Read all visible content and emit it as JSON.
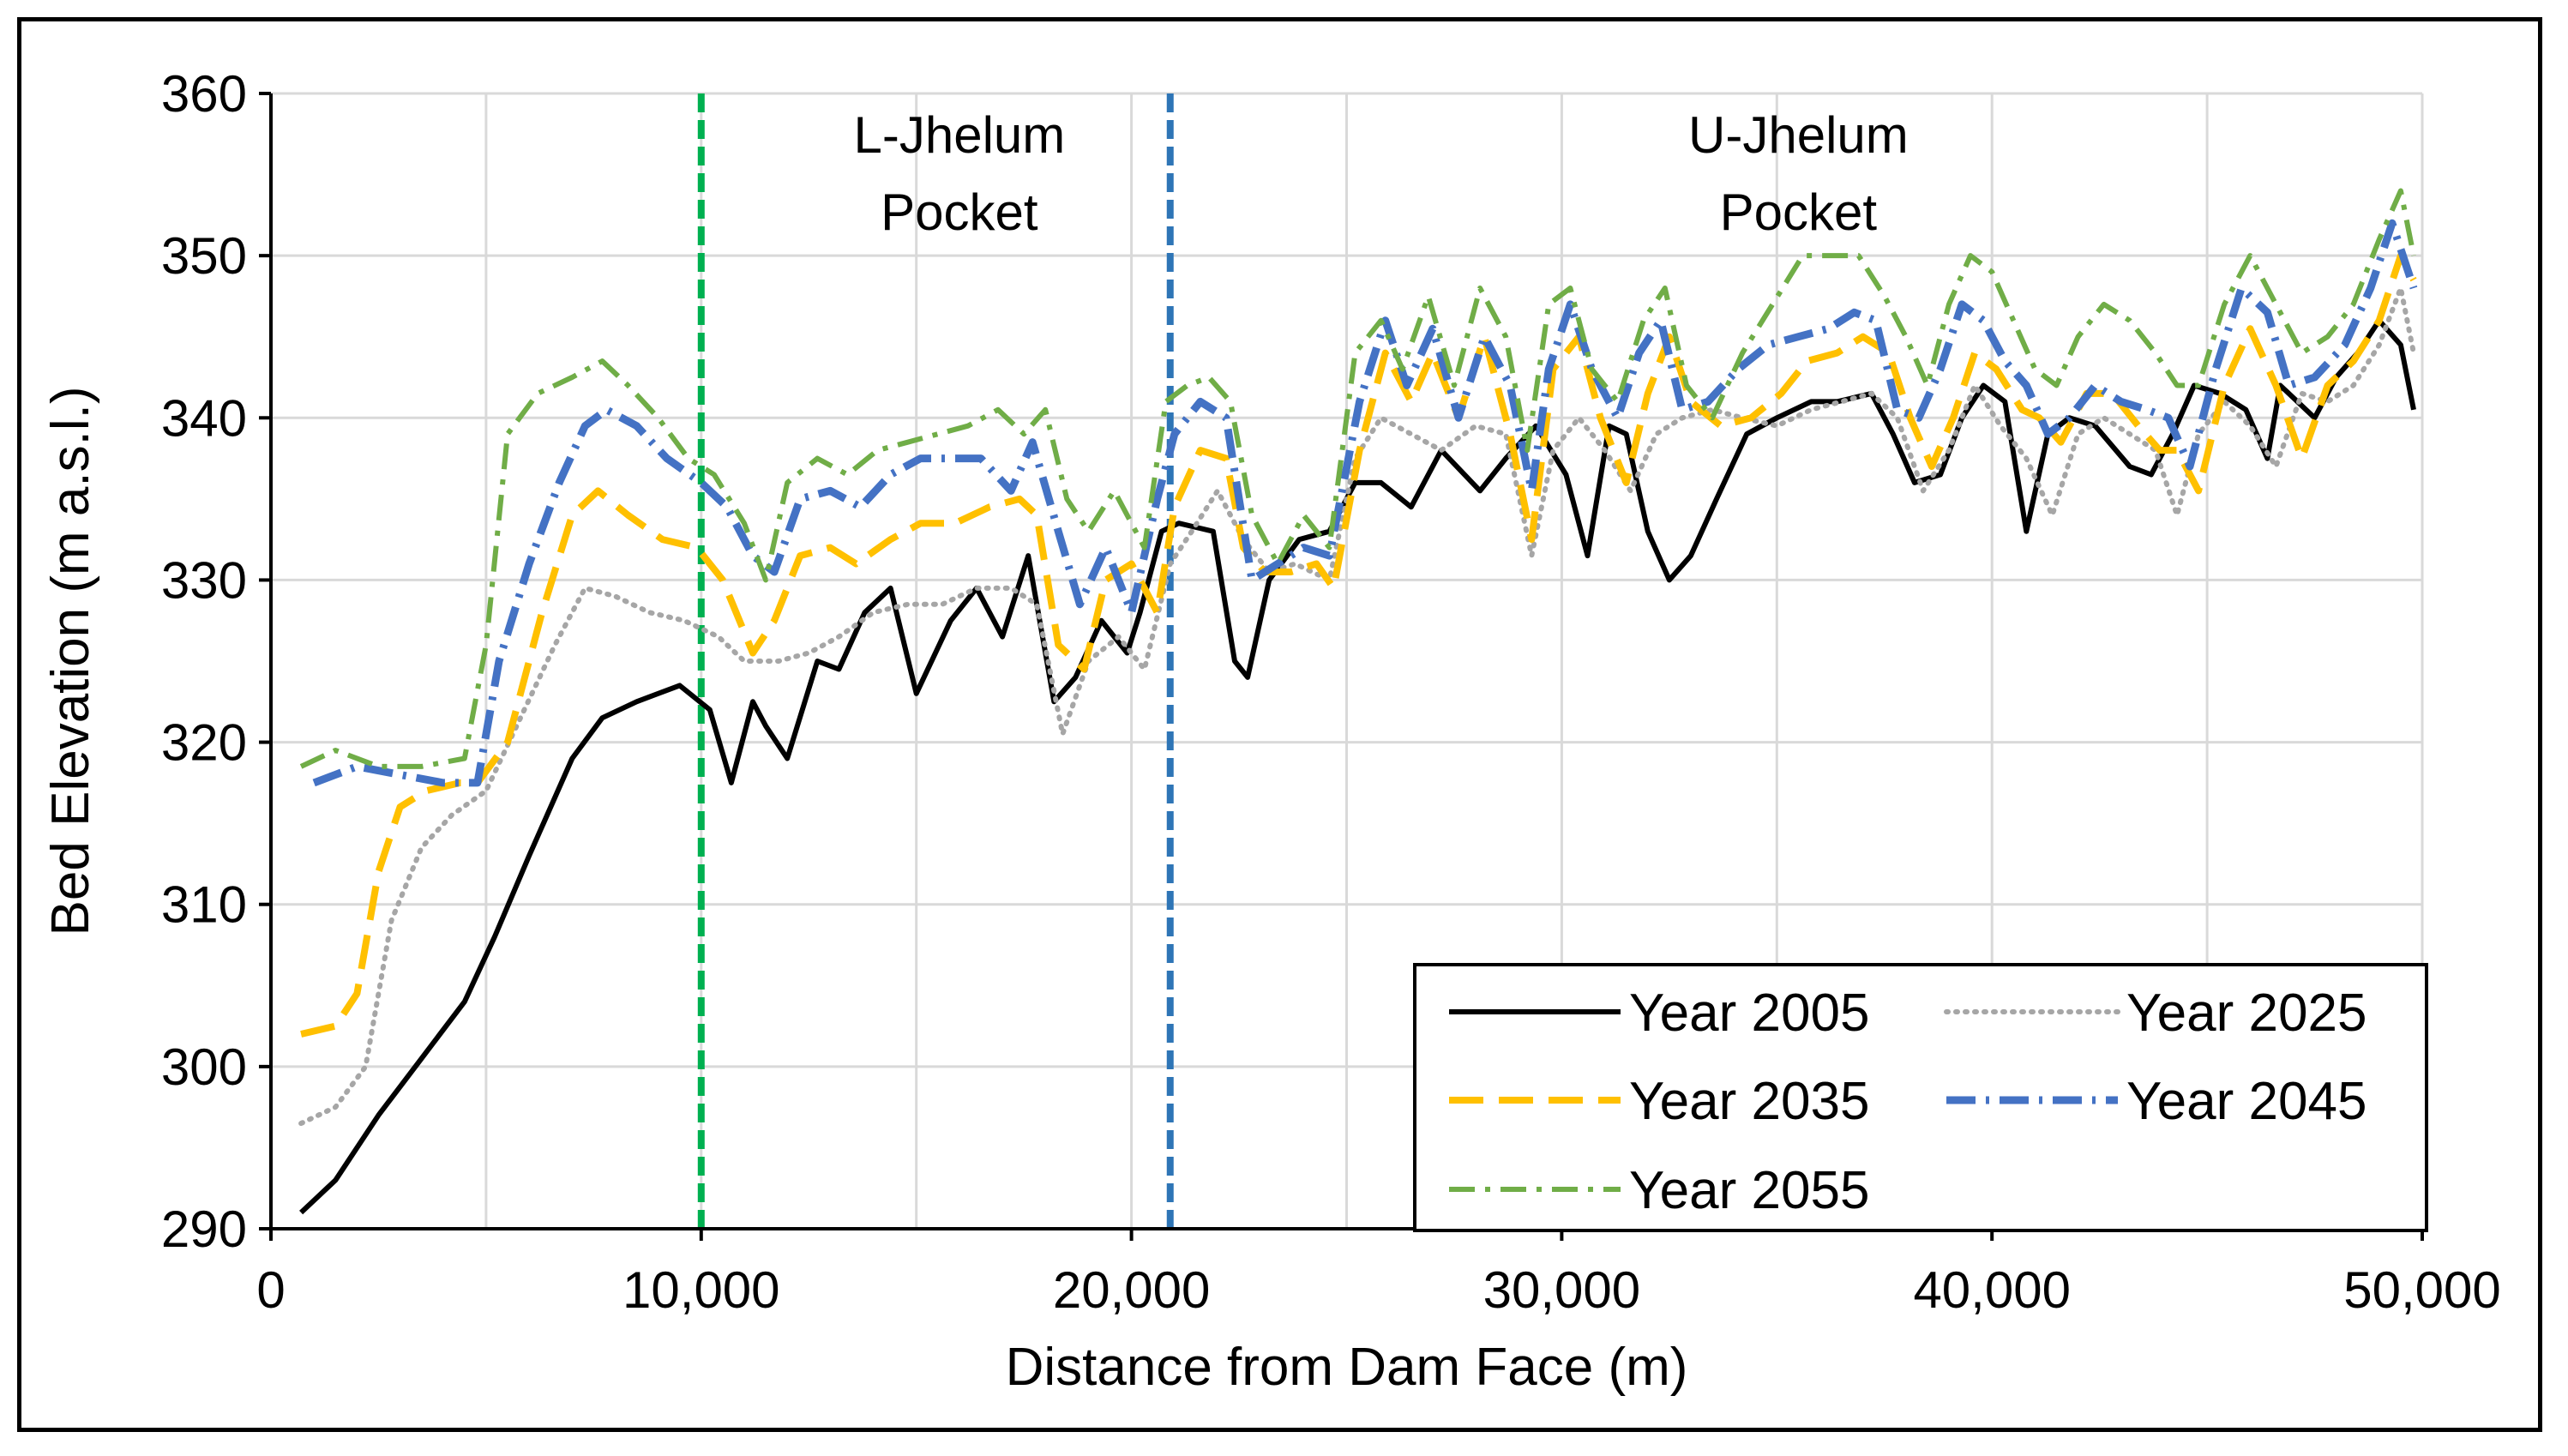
{
  "chart_data": {
    "type": "line",
    "title": "",
    "xlabel": "Distance from Dam Face (m)",
    "ylabel": "Bed Elevation (m a.s.l.)",
    "xlim": [
      0,
      50000
    ],
    "ylim": [
      290,
      360
    ],
    "x_ticks": [
      0,
      10000,
      20000,
      30000,
      40000,
      50000
    ],
    "x_tick_labels": [
      "0",
      "10,000",
      "20,000",
      "30,000",
      "40,000",
      "50,000"
    ],
    "y_ticks": [
      290,
      300,
      310,
      320,
      330,
      340,
      350,
      360
    ],
    "y_tick_labels": [
      "290",
      "300",
      "310",
      "320",
      "330",
      "340",
      "350",
      "360"
    ],
    "x_grid_step": 5000,
    "grid": true,
    "legend_position": "bottom-right",
    "annotations": [
      {
        "line1": "L-Jhelum",
        "line2": "Pocket",
        "x": 16000,
        "y": 355
      },
      {
        "line1": "U-Jhelum",
        "line2": "Pocket",
        "x": 35500,
        "y": 355
      }
    ],
    "vertical_lines": [
      {
        "x": 10000,
        "color": "#00b050",
        "style": "dashed"
      },
      {
        "x": 20900,
        "color": "#2e75b6",
        "style": "dashed"
      }
    ],
    "series": [
      {
        "name": "Year 2005",
        "color": "#000000",
        "dash": "none",
        "width": 6,
        "x": [
          700,
          1500,
          2500,
          3500,
          4500,
          5200,
          6000,
          7000,
          7700,
          8500,
          9500,
          10200,
          10700,
          11200,
          11500,
          12000,
          12700,
          13200,
          13800,
          14400,
          15000,
          15800,
          16400,
          17000,
          17600,
          18200,
          18700,
          19300,
          19900,
          20200,
          20700,
          21100,
          21900,
          22400,
          22700,
          23200,
          23900,
          24600,
          25200,
          25800,
          26500,
          27200,
          28100,
          28700,
          29400,
          30100,
          30600,
          31100,
          31500,
          32000,
          32500,
          33000,
          33600,
          34300,
          35000,
          35800,
          36400,
          37200,
          37700,
          38200,
          38800,
          39300,
          39800,
          40300,
          40800,
          41300,
          41800,
          42400,
          43200,
          43700,
          44200,
          44700,
          45300,
          45900,
          46400,
          46700,
          47100,
          47500,
          48000,
          48500,
          49000,
          49500,
          49800
        ],
        "y": [
          291,
          293,
          297,
          300.5,
          304,
          308,
          313,
          319,
          321.5,
          322.5,
          323.5,
          322,
          317.5,
          322.5,
          321,
          319,
          325,
          324.5,
          328,
          329.5,
          323,
          327.5,
          329.5,
          326.5,
          331.5,
          322.5,
          324,
          327.5,
          325.5,
          328,
          333,
          333.5,
          333,
          325,
          324,
          330,
          332.5,
          333,
          336,
          336,
          334.5,
          338,
          335.5,
          337.5,
          339.5,
          336.5,
          331.5,
          339.5,
          339,
          333,
          330,
          331.5,
          335,
          339,
          340,
          341,
          341,
          341.5,
          339,
          336,
          336.5,
          340,
          342,
          341,
          333,
          339,
          340,
          339.5,
          337,
          336.5,
          339,
          342,
          341.5,
          340.5,
          337.5,
          342,
          341,
          340,
          342.5,
          344,
          346,
          344.5,
          340.5
        ]
      },
      {
        "name": "Year 2025",
        "color": "#a6a6a6",
        "dash": "2 9",
        "width": 6,
        "x": [
          700,
          1500,
          2200,
          2800,
          3500,
          4200,
          5000,
          5800,
          6600,
          7300,
          8000,
          8800,
          9600,
          10400,
          11000,
          11800,
          12500,
          13200,
          14000,
          14800,
          15600,
          16400,
          17200,
          17800,
          18400,
          19000,
          19700,
          20300,
          20900,
          21400,
          22000,
          22600,
          23200,
          23800,
          24600,
          25200,
          25800,
          26500,
          27200,
          28000,
          28700,
          29300,
          29800,
          30400,
          31000,
          31600,
          32200,
          32800,
          33500,
          34200,
          35000,
          35800,
          36500,
          37200,
          37800,
          38400,
          39000,
          39600,
          40200,
          40800,
          41400,
          42000,
          42600,
          43200,
          43800,
          44300,
          44800,
          45400,
          46000,
          46600,
          47200,
          47800,
          48400,
          49000,
          49500,
          49800
        ],
        "y": [
          296.5,
          297.5,
          300,
          309,
          313.5,
          315.5,
          317,
          321.5,
          326,
          329.5,
          329,
          328,
          327.5,
          326.5,
          325,
          325,
          325.5,
          326.5,
          328,
          328.5,
          328.5,
          329.5,
          329.5,
          328.5,
          320.5,
          325,
          326.5,
          324.5,
          331,
          333,
          335.5,
          332.5,
          330.5,
          331,
          330,
          337.5,
          340,
          339,
          338,
          339.5,
          339,
          331.5,
          338,
          340,
          338,
          335.5,
          339,
          340,
          340.5,
          340,
          339.5,
          340.5,
          341,
          341.5,
          340,
          335.5,
          338,
          342,
          339.5,
          337.5,
          334,
          339,
          340,
          339,
          338,
          334,
          339,
          341,
          339.5,
          337,
          341.5,
          341,
          342,
          344.5,
          348,
          344
        ]
      },
      {
        "name": "Year 2035",
        "color": "#ffc000",
        "dash": "40 18",
        "width": 8,
        "x": [
          700,
          1500,
          2000,
          2500,
          3000,
          3600,
          4400,
          4800,
          5500,
          6300,
          7000,
          7600,
          8300,
          9100,
          9900,
          10500,
          11200,
          11700,
          12300,
          13000,
          13600,
          14400,
          15100,
          15900,
          16700,
          17400,
          17800,
          18300,
          18900,
          19400,
          20000,
          20600,
          21000,
          21600,
          22200,
          22600,
          23100,
          23700,
          24300,
          24700,
          25300,
          25900,
          26500,
          27000,
          27600,
          28200,
          28800,
          29300,
          29800,
          30400,
          30900,
          31500,
          32000,
          32500,
          33000,
          33700,
          34400,
          35100,
          35700,
          36400,
          37000,
          37600,
          38100,
          38600,
          39100,
          39600,
          40100,
          40700,
          41100,
          41600,
          42200,
          42800,
          43400,
          43900,
          44300,
          44800,
          45400,
          46000,
          46600,
          47200,
          47800,
          48400,
          49000,
          49500,
          49800
        ],
        "y": [
          302,
          302.5,
          304.5,
          312,
          316,
          317,
          317.5,
          317.5,
          320,
          328,
          334,
          335.5,
          334,
          332.5,
          332,
          330,
          325.5,
          327.5,
          331.5,
          332,
          331,
          332.5,
          333.5,
          333.5,
          334.5,
          335,
          334,
          326,
          324.5,
          330,
          331,
          328,
          334.5,
          338,
          337.5,
          332,
          330.5,
          330.5,
          331,
          329.5,
          338,
          344,
          341,
          344,
          340,
          345,
          339,
          332.5,
          343,
          345,
          340,
          336,
          341.5,
          345,
          341,
          339.5,
          340,
          341.5,
          343.5,
          344,
          345,
          344,
          340,
          337,
          340,
          344,
          343,
          340.5,
          340,
          338.5,
          341.5,
          341.5,
          339.5,
          338,
          338,
          335.5,
          342,
          345.5,
          342,
          337.5,
          342,
          343.5,
          346,
          350,
          348.5
        ]
      },
      {
        "name": "Year 2045",
        "color": "#4472c4",
        "dash": "34 12 4 12",
        "width": 9,
        "x": [
          1000,
          1500,
          2000,
          3000,
          4000,
          4800,
          5300,
          6000,
          6700,
          7300,
          7800,
          8500,
          9200,
          10000,
          10600,
          11200,
          11700,
          12300,
          13000,
          13700,
          14400,
          15100,
          15800,
          16500,
          17200,
          17700,
          18300,
          18800,
          19400,
          20000,
          20600,
          21000,
          21600,
          22200,
          22800,
          23400,
          24000,
          24600,
          25300,
          25900,
          26400,
          27000,
          27600,
          28200,
          28800,
          29300,
          29700,
          30200,
          30700,
          31300,
          31800,
          32300,
          32800,
          33400,
          34100,
          34800,
          35500,
          36200,
          36800,
          37300,
          37800,
          38300,
          38800,
          39300,
          39800,
          40300,
          40800,
          41300,
          41800,
          42400,
          43000,
          43600,
          44100,
          44600,
          45200,
          45800,
          46400,
          46900,
          47500,
          48200,
          48800,
          49300,
          49800
        ],
        "y": [
          317.5,
          318,
          318.5,
          318,
          317.5,
          317.5,
          325,
          331,
          336,
          339.5,
          340.5,
          339.5,
          337.5,
          336,
          334.5,
          331.5,
          330.5,
          335,
          335.5,
          334.5,
          336.5,
          337.5,
          337.5,
          337.5,
          335.5,
          338.5,
          333,
          328.5,
          332,
          328,
          335,
          339,
          341,
          340,
          330,
          331,
          332,
          331.5,
          341,
          346,
          342,
          345.5,
          340,
          345,
          342,
          335.5,
          343,
          347,
          343,
          340,
          344,
          346,
          340.5,
          341,
          343,
          344.5,
          345,
          345.5,
          346.5,
          346,
          340.5,
          340,
          343,
          347,
          346,
          343.5,
          342,
          339,
          340,
          342,
          341,
          340.5,
          340,
          337,
          343,
          348,
          346.5,
          342,
          342.5,
          344.5,
          348,
          352,
          348
        ]
      },
      {
        "name": "Year 2055",
        "color": "#70ad47",
        "dash": "30 12 6 12",
        "width": 6,
        "x": [
          700,
          1500,
          2500,
          3500,
          4500,
          5000,
          5500,
          6200,
          7000,
          7700,
          8300,
          9000,
          9700,
          10300,
          11000,
          11500,
          12000,
          12700,
          13400,
          14100,
          14800,
          15500,
          16200,
          16900,
          17500,
          18000,
          18500,
          19000,
          19600,
          20300,
          20800,
          21300,
          21800,
          22300,
          22800,
          23400,
          24000,
          24600,
          25200,
          25800,
          26300,
          26900,
          27500,
          28100,
          28700,
          29200,
          29700,
          30200,
          30700,
          31300,
          31900,
          32400,
          32900,
          33500,
          34200,
          34900,
          35600,
          36300,
          36900,
          37500,
          38000,
          38500,
          39000,
          39500,
          40000,
          40500,
          41000,
          41500,
          42000,
          42600,
          43200,
          43800,
          44300,
          44800,
          45400,
          46000,
          46600,
          47200,
          47800,
          48400,
          49000,
          49500,
          49800
        ],
        "y": [
          318.5,
          319.5,
          318.5,
          318.5,
          319,
          326,
          339,
          341.5,
          342.5,
          343.5,
          342,
          340,
          337.5,
          336.5,
          333.5,
          330,
          336,
          337.5,
          336.5,
          338,
          338.5,
          339,
          339.5,
          340.5,
          339,
          340.5,
          335,
          333,
          335.5,
          332,
          341,
          342,
          342.5,
          341,
          334,
          331,
          334,
          332,
          344,
          346,
          343,
          347.5,
          342,
          348,
          345,
          338,
          347,
          348,
          343,
          341,
          346,
          348,
          342,
          340,
          344,
          347,
          350,
          350,
          350,
          347.5,
          345,
          342,
          347,
          350,
          349,
          346,
          343,
          342,
          345,
          347,
          346,
          344,
          342,
          342,
          347,
          350,
          347,
          344,
          345,
          347,
          351,
          354,
          350
        ]
      }
    ]
  }
}
